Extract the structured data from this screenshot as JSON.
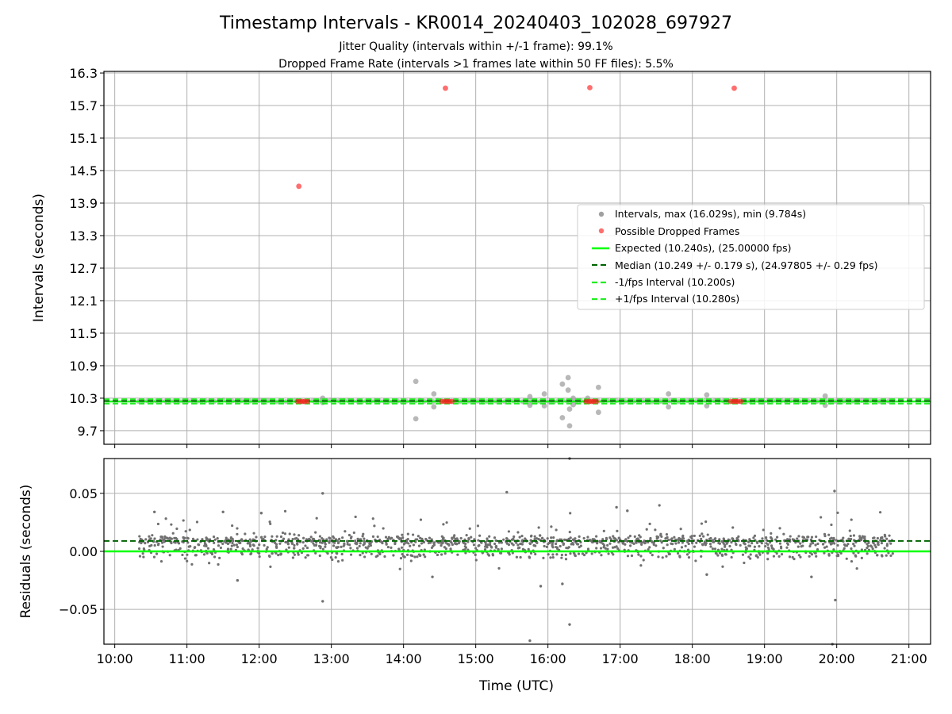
{
  "chart_data": [
    {
      "type": "scatter",
      "title": "Timestamp Intervals - KR0014_20240403_102028_697927",
      "subtitle": [
        "Jitter Quality (intervals within +/-1 frame): 99.1%",
        "Dropped Frame Rate (intervals >1 frames late within 50 FF files): 5.5%"
      ],
      "xlabel": "",
      "ylabel": "Intervals (seconds)",
      "x_unit": "hours UTC",
      "xlim": [
        9.85,
        21.3
      ],
      "ylim": [
        9.45,
        16.33
      ],
      "yticks": [
        "9.7",
        "10.3",
        "10.9",
        "11.5",
        "12.1",
        "12.7",
        "13.3",
        "13.9",
        "14.5",
        "15.1",
        "15.7",
        "16.3"
      ],
      "ytick_values": [
        9.7,
        10.3,
        10.9,
        11.5,
        12.1,
        12.7,
        13.3,
        13.9,
        14.5,
        15.1,
        15.7,
        16.3
      ],
      "grid": true,
      "legend_position": "right",
      "legend": [
        "Intervals, max (16.029s), min (9.784s)",
        "Possible Dropped Frames",
        "Expected (10.240s), (25.00000 fps)",
        "Median (10.249 +/- 0.179 s), (24.97805 +/- 0.29 fps)",
        "-1/fps Interval (10.200s)",
        "+1/fps Interval (10.280s)"
      ],
      "expected": 10.24,
      "median": 10.249,
      "minus_fps": 10.2,
      "plus_fps": 10.28,
      "baseline_range": [
        10.33,
        20.78
      ],
      "series": [
        {
          "name": "Intervals, max (16.029s), min (9.784s)",
          "color": "#a0a0a0",
          "points": [
            [
              14.17,
              10.61
            ],
            [
              14.17,
              9.92
            ],
            [
              14.42,
              10.38
            ],
            [
              14.42,
              10.14
            ],
            [
              15.75,
              10.33
            ],
            [
              15.75,
              10.17
            ],
            [
              15.95,
              10.38
            ],
            [
              15.95,
              10.16
            ],
            [
              16.2,
              10.56
            ],
            [
              16.2,
              9.94
            ],
            [
              16.28,
              10.68
            ],
            [
              16.28,
              10.45
            ],
            [
              16.3,
              9.79
            ],
            [
              16.3,
              10.1
            ],
            [
              16.55,
              10.3
            ],
            [
              16.7,
              10.5
            ],
            [
              16.7,
              10.04
            ],
            [
              17.67,
              10.38
            ],
            [
              17.67,
              10.14
            ],
            [
              18.2,
              10.36
            ],
            [
              18.2,
              10.16
            ],
            [
              19.84,
              10.34
            ],
            [
              19.84,
              10.17
            ],
            [
              12.88,
              10.3
            ],
            [
              12.88,
              10.22
            ],
            [
              16.35,
              10.3
            ],
            [
              16.35,
              10.18
            ]
          ]
        },
        {
          "name": "Possible Dropped Frames",
          "color": "#ff2020",
          "points": [
            [
              12.55,
              14.21
            ],
            [
              14.58,
              16.02
            ],
            [
              16.58,
              16.03
            ],
            [
              18.58,
              16.02
            ],
            [
              12.53,
              10.24
            ],
            [
              12.57,
              10.24
            ],
            [
              12.6,
              10.24
            ],
            [
              12.63,
              10.24
            ],
            [
              12.67,
              10.24
            ],
            [
              14.53,
              10.24
            ],
            [
              14.57,
              10.24
            ],
            [
              14.6,
              10.24
            ],
            [
              14.63,
              10.24
            ],
            [
              14.67,
              10.24
            ],
            [
              16.53,
              10.24
            ],
            [
              16.57,
              10.24
            ],
            [
              16.6,
              10.24
            ],
            [
              16.63,
              10.24
            ],
            [
              16.67,
              10.24
            ],
            [
              18.53,
              10.24
            ],
            [
              18.57,
              10.24
            ],
            [
              18.6,
              10.24
            ],
            [
              18.63,
              10.24
            ],
            [
              18.67,
              10.24
            ]
          ]
        }
      ]
    },
    {
      "type": "scatter",
      "title": "",
      "xlabel": "Time (UTC)",
      "ylabel": "Residuals (seconds)",
      "x_unit": "hours UTC",
      "xlim": [
        9.85,
        21.3
      ],
      "ylim": [
        -0.08,
        0.08
      ],
      "xticks": [
        "10:00",
        "11:00",
        "12:00",
        "13:00",
        "14:00",
        "15:00",
        "16:00",
        "17:00",
        "18:00",
        "19:00",
        "20:00",
        "21:00"
      ],
      "xtick_values": [
        10,
        11,
        12,
        13,
        14,
        15,
        16,
        17,
        18,
        19,
        20,
        21
      ],
      "yticks": [
        "−0.05",
        "0.00",
        "0.05"
      ],
      "ytick_values": [
        -0.05,
        0,
        0.05
      ],
      "grid": true,
      "expected": 0.0,
      "median": 0.009,
      "series": [
        {
          "name": "Residuals",
          "color": "#707070",
          "range": [
            10.33,
            20.78
          ],
          "points": [
            [
              12.88,
              0.05
            ],
            [
              12.88,
              -0.043
            ],
            [
              15.43,
              0.051
            ],
            [
              15.75,
              -0.077
            ],
            [
              16.3,
              0.08
            ],
            [
              16.3,
              -0.063
            ],
            [
              19.97,
              0.052
            ],
            [
              19.94,
              -0.08
            ],
            [
              19.98,
              -0.042
            ],
            [
              11.5,
              0.034
            ],
            [
              12.03,
              0.033
            ],
            [
              16.95,
              0.038
            ],
            [
              11.7,
              -0.025
            ],
            [
              14.4,
              -0.022
            ],
            [
              15.9,
              -0.03
            ],
            [
              19.65,
              -0.022
            ],
            [
              16.2,
              -0.028
            ],
            [
              10.55,
              0.034
            ],
            [
              17.1,
              0.035
            ],
            [
              18.2,
              -0.02
            ]
          ]
        }
      ]
    }
  ]
}
